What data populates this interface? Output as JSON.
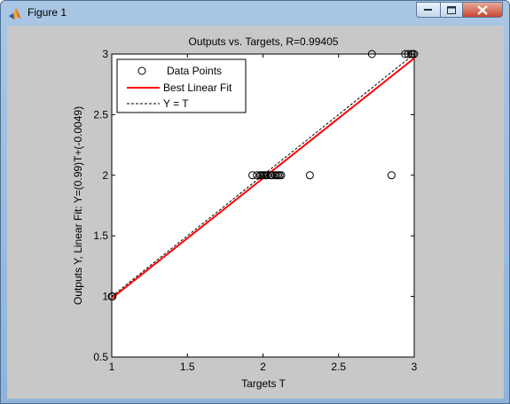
{
  "window": {
    "title": "Figure 1",
    "icon": "matlab-icon",
    "controls": [
      "minimize-icon",
      "maximize-icon",
      "close-icon"
    ]
  },
  "colors": {
    "figure_bg": "#c8c8c8",
    "axes_bg": "#ffffff",
    "fit_line": "#ff0000",
    "points": "#000000"
  },
  "chart_data": {
    "type": "scatter",
    "title": "Outputs vs. Targets, R=0.99405",
    "xlabel": "Targets T",
    "ylabel": "Outputs Y,  Linear Fit: Y=(0.99)T+(-0.0049)",
    "xlim": [
      1,
      3
    ],
    "ylim": [
      0.5,
      3
    ],
    "xticks": [
      1,
      1.5,
      2,
      2.5,
      3
    ],
    "xtick_labels": [
      "1",
      "1.5",
      "2",
      "2.5",
      "3"
    ],
    "yticks": [
      0.5,
      1,
      1.5,
      2,
      2.5,
      3
    ],
    "ytick_labels": [
      "0.5",
      "1",
      "1.5",
      "2",
      "2.5",
      "3"
    ],
    "grid": false,
    "legend_position": "top-left",
    "series": [
      {
        "name": "Data Points",
        "style": "circle-markers",
        "x": [
          1.0,
          1.005,
          1.93,
          1.96,
          1.98,
          1.99,
          2.0,
          2.01,
          2.02,
          2.03,
          2.05,
          2.06,
          2.08,
          2.09,
          2.1,
          2.11,
          2.12,
          2.31,
          2.85,
          2.72,
          2.94,
          2.96,
          2.98,
          2.99,
          3.0
        ],
        "y": [
          1.0,
          1.0,
          2.0,
          2.0,
          2.0,
          2.0,
          2.0,
          2.0,
          2.0,
          2.0,
          2.0,
          2.0,
          2.0,
          2.0,
          2.0,
          2.0,
          2.0,
          2.0,
          2.0,
          3.0,
          3.0,
          3.0,
          3.0,
          3.0,
          3.0
        ]
      },
      {
        "name": "Best Linear Fit",
        "style": "solid-red-line",
        "slope": 0.99,
        "intercept": -0.0049,
        "x": [
          1,
          3
        ]
      },
      {
        "name": "Y = T",
        "style": "dashed-black-line",
        "slope": 1,
        "intercept": 0,
        "x": [
          1,
          3
        ]
      }
    ]
  }
}
